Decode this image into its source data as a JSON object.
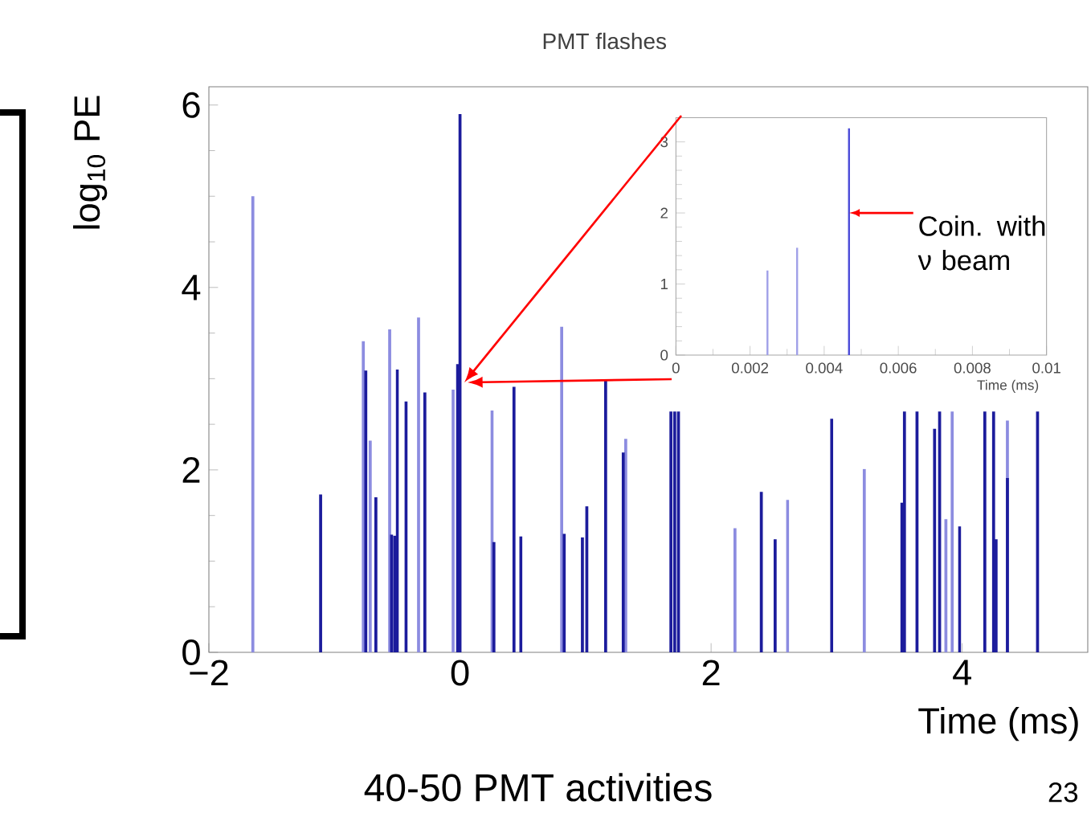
{
  "chart_data": [
    {
      "type": "bar",
      "title": "PMT flashes",
      "xlabel": "Time (ms)",
      "ylabel": "log$_{10}$ PE",
      "xlim": [
        -2,
        5
      ],
      "ylim": [
        0,
        6.2
      ],
      "xticks": [
        {
          "value": -2,
          "label": "−2"
        },
        0,
        2,
        4
      ],
      "yticks": [
        0,
        2,
        4,
        6
      ],
      "series": [
        {
          "color": "#8c8ce0",
          "x": [
            -1.65,
            -0.77,
            -0.715,
            -0.56,
            -0.33,
            -0.055,
            0.255,
            0.81,
            1.32,
            2.19,
            2.61,
            3.22,
            3.87,
            3.92,
            4.36
          ],
          "values": [
            5.0,
            3.41,
            2.32,
            3.54,
            3.67,
            2.88,
            2.65,
            3.57,
            2.34,
            1.36,
            1.67,
            2.01,
            1.46,
            2.64,
            2.54
          ]
        },
        {
          "color": "#1c1c9c",
          "x": [
            -1.11,
            -0.75,
            -0.67,
            -0.545,
            -0.52,
            -0.5,
            -0.43,
            -0.28,
            -0.02,
            0.0,
            0.27,
            0.43,
            0.485,
            0.83,
            0.975,
            1.01,
            1.16,
            1.3,
            1.68,
            1.71,
            1.74,
            2.4,
            2.51,
            2.96,
            3.52,
            3.54,
            3.64,
            3.78,
            3.82,
            3.98,
            4.18,
            4.25,
            4.27,
            4.36,
            4.6
          ],
          "values": [
            1.73,
            3.09,
            1.7,
            1.29,
            1.28,
            3.1,
            2.75,
            2.85,
            3.16,
            5.9,
            1.21,
            2.91,
            1.27,
            1.3,
            1.26,
            1.6,
            2.98,
            2.19,
            2.64,
            2.64,
            2.64,
            1.76,
            1.24,
            2.56,
            1.64,
            2.64,
            2.64,
            2.45,
            2.64,
            1.38,
            2.64,
            2.64,
            1.24,
            1.91,
            2.64
          ]
        }
      ],
      "annotations": [
        "40-50 PMT activities",
        "23"
      ]
    },
    {
      "type": "bar",
      "xlabel": "Time (ms)",
      "xlim": [
        0,
        0.01
      ],
      "ylim": [
        0,
        3.34
      ],
      "xticks": [
        0,
        0.002,
        0.004,
        0.006,
        0.008,
        0.01
      ],
      "yticks": [
        0,
        1,
        2,
        3
      ],
      "x": [
        0.00247,
        0.00327,
        0.00467
      ],
      "values": [
        1.19,
        1.51,
        3.19
      ],
      "colors": [
        "#a0a0e8",
        "#a0a0e8",
        "#4a4ad8"
      ],
      "annotations": [
        {
          "text": "Coin. with ν beam",
          "x": 0.00467,
          "y": 2
        }
      ]
    }
  ]
}
